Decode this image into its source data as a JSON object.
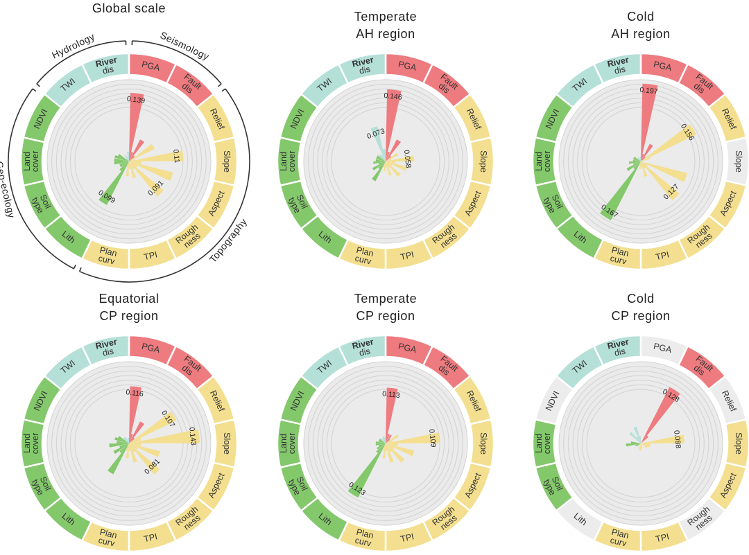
{
  "colors": {
    "Seismology": "#ee7b7f",
    "Topography": "#f3df8f",
    "Geo-ecology": "#84c86c",
    "Hydrology": "#b4e0d8",
    "inactive": "#ececec",
    "ring_bg": "#ebebeb",
    "grid": "#d2d2d2"
  },
  "factors": [
    {
      "lines": [
        "PGA"
      ],
      "group": "Seismology"
    },
    {
      "lines": [
        "Fault",
        "dis"
      ],
      "group": "Seismology"
    },
    {
      "lines": [
        "Relief"
      ],
      "group": "Topography"
    },
    {
      "lines": [
        "Slope"
      ],
      "group": "Topography"
    },
    {
      "lines": [
        "Aspect"
      ],
      "group": "Topography"
    },
    {
      "lines": [
        "Rough",
        "ness"
      ],
      "group": "Topography"
    },
    {
      "lines": [
        "TPI"
      ],
      "group": "Topography"
    },
    {
      "lines": [
        "Plan",
        "curv"
      ],
      "group": "Topography"
    },
    {
      "lines": [
        "Lith"
      ],
      "group": "Geo-ecology"
    },
    {
      "lines": [
        "Soil",
        "type"
      ],
      "group": "Geo-ecology"
    },
    {
      "lines": [
        "Land",
        "cover"
      ],
      "group": "Geo-ecology"
    },
    {
      "lines": [
        "NDVI"
      ],
      "group": "Geo-ecology"
    },
    {
      "lines": [
        "TWI"
      ],
      "group": "Hydrology"
    },
    {
      "lines": [
        "River",
        "dis"
      ],
      "group": "Hydrology"
    }
  ],
  "group_labels": {
    "Hydrology": "Hydrology",
    "Seismology": "Seismology",
    "Topography": "Topography",
    "Geo-ecology": "Geo-ecology"
  },
  "chart_data": [
    {
      "type": "polar-bar",
      "title_lines": [
        "Global scale",
        ""
      ],
      "rmax": 0.16,
      "inactive": [],
      "bars": [
        [
          0.139,
          0.02
        ],
        [
          0.05,
          0.015
        ],
        [
          0.058,
          0.012
        ],
        [
          0.11,
          0.025
        ],
        [
          0.092,
          0.02
        ],
        [
          0.091,
          0.018
        ],
        [
          0.035,
          0.015
        ],
        [
          0.03,
          0.012
        ],
        [
          0.099,
          0.025
        ],
        [
          0.02,
          0.02
        ],
        [
          0.03,
          0.03
        ],
        [
          0.03,
          0.025
        ],
        [
          0.008,
          0.015
        ],
        [
          0.01,
          0.02
        ]
      ],
      "value_labels": [
        {
          "factor": 0,
          "text": "0.139"
        },
        {
          "factor": 3,
          "text": "0.11"
        },
        {
          "factor": 5,
          "text": "0.091"
        },
        {
          "factor": 8,
          "text": "0.099"
        }
      ],
      "group_arcs": true
    },
    {
      "type": "polar-bar",
      "title_lines": [
        "Temperate",
        "AH region"
      ],
      "rmax": 0.16,
      "inactive": [],
      "bars": [
        [
          0.146,
          0.02
        ],
        [
          0.05,
          0.015
        ],
        [
          0.028,
          0.012
        ],
        [
          0.058,
          0.02
        ],
        [
          0.045,
          0.015
        ],
        [
          0.04,
          0.015
        ],
        [
          0.03,
          0.012
        ],
        [
          0.02,
          0.012
        ],
        [
          0.045,
          0.02
        ],
        [
          0.03,
          0.015
        ],
        [
          0.025,
          0.02
        ],
        [
          0.02,
          0.02
        ],
        [
          0.018,
          0.015
        ],
        [
          0.073,
          0.025
        ]
      ],
      "value_labels": [
        {
          "factor": 0,
          "text": "0.146"
        },
        {
          "factor": 3,
          "text": "0.058"
        },
        {
          "factor": 13,
          "text": "0.073"
        }
      ],
      "group_arcs": false
    },
    {
      "type": "polar-bar",
      "title_lines": [
        "Cold",
        "AH region"
      ],
      "rmax": 0.2,
      "inactive": [
        3
      ],
      "bars": [
        [
          0.197,
          0.02
        ],
        [
          0.05,
          0.015
        ],
        [
          0.156,
          0.025
        ],
        [
          0.0,
          0.0
        ],
        [
          0.121,
          0.02
        ],
        [
          0.127,
          0.02
        ],
        [
          0.04,
          0.015
        ],
        [
          0.02,
          0.012
        ],
        [
          0.167,
          0.025
        ],
        [
          0.04,
          0.02
        ],
        [
          0.03,
          0.02
        ],
        [
          0.02,
          0.02
        ],
        [
          0.01,
          0.012
        ],
        [
          0.008,
          0.012
        ]
      ],
      "value_labels": [
        {
          "factor": 0,
          "text": "0.197"
        },
        {
          "factor": 2,
          "text": "0.156"
        },
        {
          "factor": 5,
          "text": "0.127"
        },
        {
          "factor": 8,
          "text": "0.167"
        }
      ],
      "group_arcs": false
    },
    {
      "type": "polar-bar",
      "title_lines": [
        "Equatorial",
        "CP region"
      ],
      "rmax": 0.16,
      "inactive": [],
      "bars": [
        [
          0.116,
          0.02
        ],
        [
          0.05,
          0.015
        ],
        [
          0.107,
          0.025
        ],
        [
          0.143,
          0.025
        ],
        [
          0.065,
          0.02
        ],
        [
          0.081,
          0.02
        ],
        [
          0.04,
          0.015
        ],
        [
          0.03,
          0.015
        ],
        [
          0.07,
          0.025
        ],
        [
          0.035,
          0.02
        ],
        [
          0.04,
          0.025
        ],
        [
          0.03,
          0.025
        ],
        [
          0.015,
          0.015
        ],
        [
          0.01,
          0.012
        ]
      ],
      "value_labels": [
        {
          "factor": 0,
          "text": "0.116"
        },
        {
          "factor": 2,
          "text": "0.107"
        },
        {
          "factor": 3,
          "text": "0.143"
        },
        {
          "factor": 5,
          "text": "0.081"
        }
      ],
      "group_arcs": false
    },
    {
      "type": "polar-bar",
      "title_lines": [
        "Temperate",
        "CP region"
      ],
      "rmax": 0.16,
      "inactive": [],
      "bars": [
        [
          0.113,
          0.02
        ],
        [
          0.02,
          0.012
        ],
        [
          0.03,
          0.015
        ],
        [
          0.109,
          0.025
        ],
        [
          0.06,
          0.02
        ],
        [
          0.05,
          0.02
        ],
        [
          0.04,
          0.015
        ],
        [
          0.03,
          0.015
        ],
        [
          0.123,
          0.025
        ],
        [
          0.02,
          0.015
        ],
        [
          0.02,
          0.02
        ],
        [
          0.015,
          0.015
        ],
        [
          0.015,
          0.012
        ],
        [
          0.015,
          0.012
        ]
      ],
      "value_labels": [
        {
          "factor": 0,
          "text": "0.113"
        },
        {
          "factor": 3,
          "text": "0.109"
        },
        {
          "factor": 8,
          "text": "0.123"
        }
      ],
      "group_arcs": false
    },
    {
      "type": "polar-bar",
      "title_lines": [
        "Cold",
        "CP region"
      ],
      "rmax": 0.16,
      "inactive": [
        0,
        2,
        5,
        8,
        11
      ],
      "bars": [
        [
          0.0,
          0.0
        ],
        [
          0.128,
          0.02
        ],
        [
          0.0,
          0.0
        ],
        [
          0.088,
          0.02
        ],
        [
          0.02,
          0.015
        ],
        [
          0.0,
          0.0
        ],
        [
          0.01,
          0.012
        ],
        [
          0.015,
          0.012
        ],
        [
          0.0,
          0.0
        ],
        [
          0.01,
          0.012
        ],
        [
          0.03,
          0.02
        ],
        [
          0.0,
          0.0
        ],
        [
          0.03,
          0.015
        ],
        [
          0.035,
          0.015
        ]
      ],
      "value_labels": [
        {
          "factor": 1,
          "text": "0.128"
        },
        {
          "factor": 3,
          "text": "0.088"
        }
      ],
      "group_arcs": false
    }
  ]
}
